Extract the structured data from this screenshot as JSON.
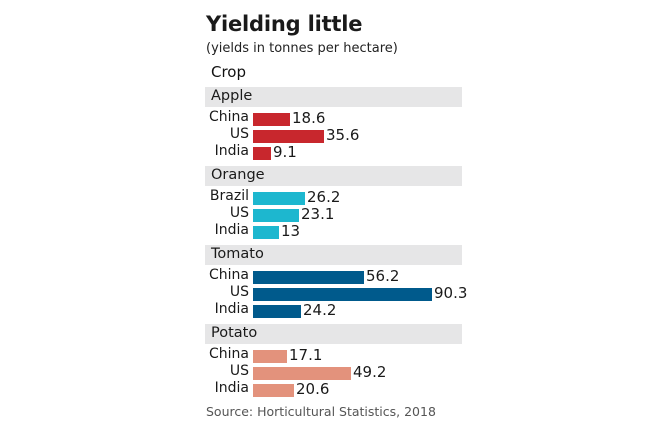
{
  "header": {
    "title": "Yielding little",
    "subtitle": "(yields in tonnes per hectare)",
    "column_label": "Crop"
  },
  "source": "Source: Horticultural Statistics, 2018",
  "chart_data": {
    "type": "bar",
    "orientation": "horizontal",
    "title": "Yielding little",
    "subtitle": "(yields in tonnes per hectare)",
    "xlabel": "",
    "ylabel": "Crop",
    "unit": "tonnes per hectare",
    "grid": false,
    "xlim": [
      0,
      90.3
    ],
    "source": "Source: Horticultural Statistics, 2018",
    "groups": [
      {
        "name": "Apple",
        "color": "#c8272d",
        "categories": [
          "China",
          "US",
          "India"
        ],
        "values": [
          18.6,
          35.6,
          9.1
        ],
        "labels": [
          "18.6",
          "35.6",
          "9.1"
        ]
      },
      {
        "name": "Orange",
        "color": "#1db7cf",
        "categories": [
          "Brazil",
          "US",
          "India"
        ],
        "values": [
          26.2,
          23.1,
          13
        ],
        "labels": [
          "26.2",
          "23.1",
          "13"
        ]
      },
      {
        "name": "Tomato",
        "color": "#005a8c",
        "categories": [
          "China",
          "US",
          "India"
        ],
        "values": [
          56.2,
          90.3,
          24.2
        ],
        "labels": [
          "56.2",
          "90.3",
          "24.2"
        ]
      },
      {
        "name": "Potato",
        "color": "#e3927c",
        "categories": [
          "China",
          "US",
          "India"
        ],
        "values": [
          17.1,
          49.2,
          20.6
        ],
        "labels": [
          "17.1",
          "49.2",
          "20.6"
        ]
      }
    ]
  }
}
